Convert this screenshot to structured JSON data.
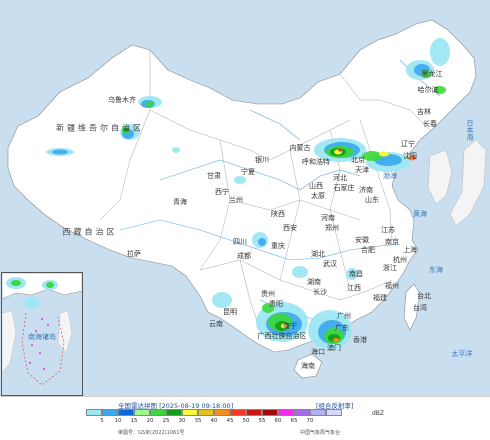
{
  "map": {
    "provinces": [
      {
        "name": "黑龙江",
        "key": "heilongjiang"
      },
      {
        "name": "吉林",
        "key": "jilin"
      },
      {
        "name": "辽宁",
        "key": "liaoning"
      },
      {
        "name": "内蒙古",
        "key": "neimenggu"
      },
      {
        "name": "北京",
        "key": "beijing"
      },
      {
        "name": "天津",
        "key": "tianjin"
      },
      {
        "name": "河北",
        "key": "hebei"
      },
      {
        "name": "山西",
        "key": "shanxi"
      },
      {
        "name": "山东",
        "key": "shandong"
      },
      {
        "name": "河南",
        "key": "henan"
      },
      {
        "name": "陕西",
        "key": "shaanxi"
      },
      {
        "name": "宁夏",
        "key": "ningxia"
      },
      {
        "name": "甘肃",
        "key": "gansu"
      },
      {
        "name": "青海",
        "key": "qinghai"
      },
      {
        "name": "新疆维吾尔自治区",
        "key": "xinjiang"
      },
      {
        "name": "西藏自治区",
        "key": "xizang"
      },
      {
        "name": "四川",
        "key": "sichuan"
      },
      {
        "name": "重庆",
        "key": "chongqing"
      },
      {
        "name": "湖北",
        "key": "hubei"
      },
      {
        "name": "湖南",
        "key": "hunan"
      },
      {
        "name": "江西",
        "key": "jiangxi"
      },
      {
        "name": "安徽",
        "key": "anhui"
      },
      {
        "name": "江苏",
        "key": "jiangsu"
      },
      {
        "name": "上海",
        "key": "shanghai"
      },
      {
        "name": "浙江",
        "key": "zhejiang"
      },
      {
        "name": "福建",
        "key": "fujian"
      },
      {
        "name": "贵州",
        "key": "guizhou"
      },
      {
        "name": "云南",
        "key": "yunnan"
      },
      {
        "name": "广西壮族自治区",
        "key": "guangxi"
      },
      {
        "name": "广东",
        "key": "guangdong"
      },
      {
        "name": "海南",
        "key": "hainan"
      },
      {
        "name": "台湾",
        "key": "taiwan"
      }
    ],
    "cities": [
      {
        "name": "乌鲁木齐",
        "key": "urumqi"
      },
      {
        "name": "拉萨",
        "key": "lasa"
      },
      {
        "name": "西宁",
        "key": "xining"
      },
      {
        "name": "兰州",
        "key": "lanzhou"
      },
      {
        "name": "银川",
        "key": "yinchuan"
      },
      {
        "name": "呼和浩特",
        "key": "huhehaote"
      },
      {
        "name": "哈尔滨",
        "key": "haerbin"
      },
      {
        "name": "长春",
        "key": "changchun"
      },
      {
        "name": "沈阳",
        "key": "shenyang"
      },
      {
        "name": "石家庄",
        "key": "shijiazhuang"
      },
      {
        "name": "太原",
        "key": "taiyuan"
      },
      {
        "name": "济南",
        "key": "jinan"
      },
      {
        "name": "郑州",
        "key": "zhengzhou"
      },
      {
        "name": "西安",
        "key": "xian"
      },
      {
        "name": "成都",
        "key": "chengdu"
      },
      {
        "name": "武汉",
        "key": "wuhan"
      },
      {
        "name": "合肥",
        "key": "hefei"
      },
      {
        "name": "南京",
        "key": "nanjing"
      },
      {
        "name": "杭州",
        "key": "hangzhou"
      },
      {
        "name": "南昌",
        "key": "nanchang"
      },
      {
        "name": "长沙",
        "key": "changsha"
      },
      {
        "name": "贵阳",
        "key": "guiyang"
      },
      {
        "name": "昆明",
        "key": "kunming"
      },
      {
        "name": "南宁",
        "key": "nanning"
      },
      {
        "name": "广州",
        "key": "guangzhou"
      },
      {
        "name": "福州",
        "key": "fuzhou"
      },
      {
        "name": "台北",
        "key": "taibei"
      },
      {
        "name": "海口",
        "key": "haikou"
      },
      {
        "name": "香港",
        "key": "xianggang"
      },
      {
        "name": "澳门",
        "key": "aomen"
      }
    ],
    "seas": [
      {
        "name": "渤海",
        "key": "bohai"
      },
      {
        "name": "黄海",
        "key": "huanghai"
      },
      {
        "name": "东海",
        "key": "donghai"
      },
      {
        "name": "日本海",
        "key": "ribenhai"
      },
      {
        "name": "太平洋",
        "key": "taipingyang"
      }
    ],
    "inset": {
      "sea": "南海诸岛"
    }
  },
  "legend": {
    "title": "全国雷达拼图 [2025-08-19 09:18:00]",
    "product": "[组合反射率]",
    "unit": "dBZ",
    "ticks": [
      "5",
      "10",
      "15",
      "20",
      "25",
      "30",
      "35",
      "40",
      "45",
      "50",
      "55",
      "60",
      "65",
      "70"
    ],
    "colors": [
      "#9ee6f4",
      "#3aa8ee",
      "#0a68d8",
      "#9dfa8c",
      "#3dd93a",
      "#129e18",
      "#fafa36",
      "#e6c21c",
      "#f58e18",
      "#f7362a",
      "#cf1616",
      "#a30a10",
      "#ef2cec",
      "#a56ce8",
      "#b2b2f2",
      "#d8d8f8"
    ],
    "review_no": "审图号：GS京(2022)1061号",
    "source": "中国气象局气象台"
  },
  "colors": {
    "land": "#ffffff",
    "sea": "#c9dff0",
    "river": "#5aa8e0",
    "border": "#8a8a8a"
  }
}
